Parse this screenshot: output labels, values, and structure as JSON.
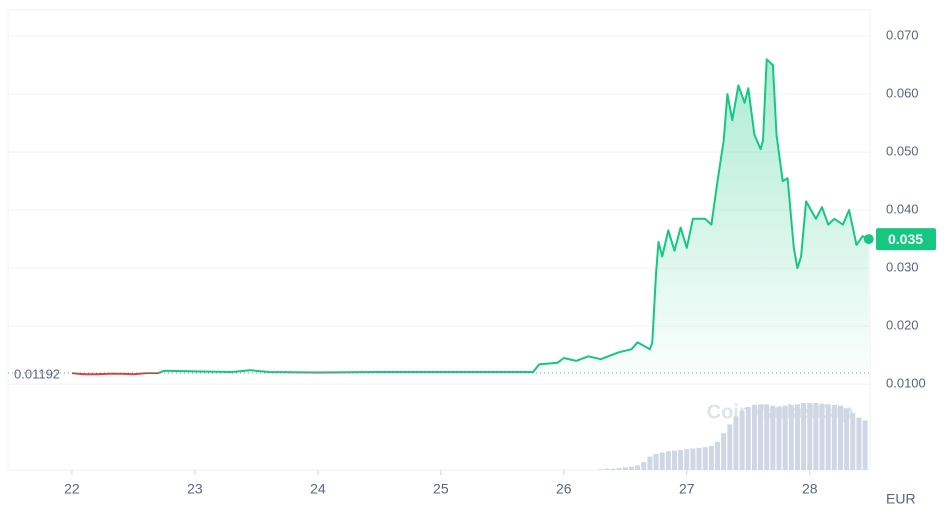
{
  "chart_data": {
    "type": "line",
    "x": [
      22.0,
      22.1,
      22.2,
      22.3,
      22.4,
      22.5,
      22.6,
      22.7,
      22.75,
      23.0,
      23.3,
      23.45,
      23.6,
      24.0,
      24.5,
      25.0,
      25.5,
      25.75,
      25.8,
      25.95,
      26.0,
      26.1,
      26.2,
      26.3,
      26.45,
      26.55,
      26.6,
      26.7,
      26.72,
      26.75,
      26.77,
      26.8,
      26.85,
      26.9,
      26.95,
      27.0,
      27.05,
      27.15,
      27.2,
      27.25,
      27.3,
      27.33,
      27.37,
      27.42,
      27.47,
      27.5,
      27.55,
      27.6,
      27.62,
      27.65,
      27.7,
      27.73,
      27.78,
      27.82,
      27.87,
      27.9,
      27.93,
      27.97,
      28.05,
      28.1,
      28.15,
      28.2,
      28.27,
      28.32,
      28.38,
      28.43,
      28.48
    ],
    "series": [
      {
        "color": "#16c784",
        "down_color": "#ea3943",
        "values": [
          0.0119,
          0.0117,
          0.0117,
          0.0118,
          0.0118,
          0.0117,
          0.0119,
          0.0119,
          0.0123,
          0.0122,
          0.0121,
          0.0124,
          0.0121,
          0.012,
          0.0121,
          0.0121,
          0.0121,
          0.0121,
          0.0134,
          0.0137,
          0.0145,
          0.014,
          0.0148,
          0.0143,
          0.0155,
          0.016,
          0.0172,
          0.016,
          0.0172,
          0.029,
          0.0345,
          0.032,
          0.0365,
          0.033,
          0.037,
          0.0335,
          0.0385,
          0.0385,
          0.0375,
          0.045,
          0.052,
          0.06,
          0.0555,
          0.0615,
          0.0585,
          0.061,
          0.053,
          0.0505,
          0.052,
          0.066,
          0.065,
          0.053,
          0.045,
          0.0455,
          0.0335,
          0.03,
          0.032,
          0.0415,
          0.0385,
          0.0405,
          0.0375,
          0.0385,
          0.0375,
          0.04,
          0.034,
          0.0355,
          0.035
        ]
      }
    ],
    "reference": {
      "value": 0.01192,
      "label": "0.01192"
    },
    "current": {
      "value": 0.035,
      "label": "0.035"
    },
    "xlim": [
      21.48,
      28.49
    ],
    "xticks": [
      22,
      23,
      24,
      25,
      26,
      27,
      28
    ],
    "ylim": [
      -0.0048,
      0.0745
    ],
    "yticks": [
      {
        "value": 0.07,
        "label": "0.070"
      },
      {
        "value": 0.06,
        "label": "0.060"
      },
      {
        "value": 0.05,
        "label": "0.050"
      },
      {
        "value": 0.04,
        "label": "0.040"
      },
      {
        "value": 0.03,
        "label": "0.030"
      },
      {
        "value": 0.02,
        "label": "0.020"
      },
      {
        "value": 0.01,
        "label": "0.0100"
      }
    ],
    "currency": "EUR",
    "watermark": "CoinMarketCap",
    "grid": true,
    "volume": {
      "color": "#cfd6e4",
      "ylim": [
        0,
        100
      ],
      "x": [
        26.3,
        26.35,
        26.4,
        26.45,
        26.5,
        26.55,
        26.6,
        26.65,
        26.7,
        26.75,
        26.8,
        26.85,
        26.9,
        26.95,
        27.0,
        27.05,
        27.1,
        27.15,
        27.2,
        27.25,
        27.3,
        27.35,
        27.4,
        27.45,
        27.5,
        27.55,
        27.6,
        27.65,
        27.7,
        27.75,
        27.8,
        27.85,
        27.9,
        27.95,
        28.0,
        28.05,
        28.1,
        28.15,
        28.2,
        28.25,
        28.3,
        28.35,
        28.4,
        28.45
      ],
      "values": [
        1,
        2,
        2,
        3,
        4,
        5,
        7,
        12,
        20,
        24,
        26,
        28,
        29,
        30,
        31,
        32,
        33,
        34,
        36,
        42,
        55,
        68,
        80,
        88,
        94,
        97,
        98,
        98,
        96,
        95,
        96,
        97,
        98,
        100,
        100,
        100,
        99,
        98,
        97,
        96,
        92,
        85,
        78,
        74
      ]
    }
  }
}
